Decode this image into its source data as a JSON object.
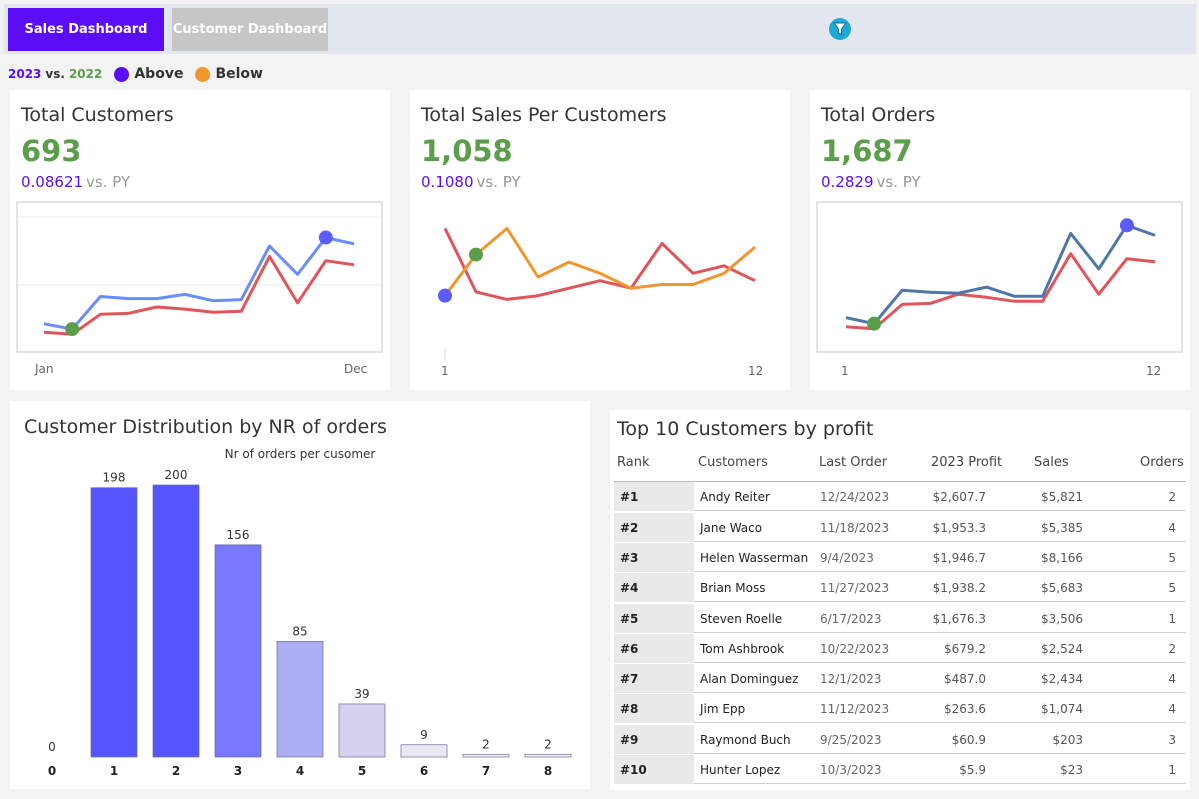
{
  "nav": {
    "sales_tab": "Sales Dashboard",
    "customer_tab": "Customer Dashboard",
    "filter_icon": "filter-icon"
  },
  "legend": {
    "year_current": "2023",
    "vs": "vs.",
    "year_previous": "2022",
    "above": "Above",
    "below": "Below",
    "above_color": "#5b5bff",
    "below_color": "#f0962d"
  },
  "kpis": [
    {
      "title": "Total Customers",
      "value": "693",
      "pct": "0.08621",
      "vs": "vs. PY",
      "x_start": "Jan",
      "x_end": "Dec",
      "current": [
        8,
        3,
        34,
        32,
        32,
        36,
        30,
        31,
        82,
        55,
        90,
        84
      ],
      "previous": [
        0,
        -2,
        17,
        18,
        24,
        22,
        19,
        20,
        72,
        28,
        68,
        64
      ],
      "ylim": [
        -15,
        120
      ],
      "min_index": 1,
      "max_index": 10,
      "current_color": "#6b8cff",
      "previous_color": "#e0545a",
      "framed": true,
      "reflines": true
    },
    {
      "title": "Total Sales Per Customers",
      "value": "1,058",
      "pct": "0.1080",
      "vs": "vs. PY",
      "x_start": "1",
      "x_end": "12",
      "current": [
        38,
        49,
        56,
        43,
        47,
        44,
        40,
        41,
        41,
        44,
        51
      ],
      "previous": [
        56,
        39,
        37,
        38,
        40,
        42,
        40,
        52,
        44,
        46,
        42
      ],
      "ylim": [
        24,
        62
      ],
      "min_index": 1,
      "max_index": 0,
      "current_color": "#f0962d",
      "previous_color": "#e0545a",
      "framed": false,
      "reflines": false
    },
    {
      "title": "Total Orders",
      "value": "1,687",
      "pct": "0.2829",
      "vs": "vs. PY",
      "x_start": "1",
      "x_end": "12",
      "current": [
        10,
        4,
        37,
        35,
        34,
        40,
        31,
        31,
        93,
        58,
        101,
        91
      ],
      "previous": [
        1,
        -1,
        23,
        24,
        33,
        30,
        26,
        26,
        73,
        33,
        68,
        65
      ],
      "ylim": [
        -20,
        120
      ],
      "min_index": 1,
      "max_index": 10,
      "current_color": "#4e76a8",
      "previous_color": "#e0545a",
      "framed": true,
      "reflines": false
    }
  ],
  "distribution": {
    "title": "Customer Distribution by NR of orders",
    "chart_data": {
      "type": "bar",
      "title": "Nr of orders per cusomer",
      "categories": [
        "0",
        "1",
        "2",
        "3",
        "4",
        "5",
        "6",
        "7",
        "8"
      ],
      "values": [
        0,
        198,
        200,
        156,
        85,
        39,
        9,
        2,
        2
      ],
      "colors": [
        "#5555ff",
        "#5555ff",
        "#5555ff",
        "#7777ff",
        "#aeaef4",
        "#d3d3f0",
        "#e8e8f4",
        "#f0f0f6",
        "#f0f0f6"
      ],
      "ylim": [
        0,
        200
      ]
    }
  },
  "top10": {
    "title": "Top 10 Customers by profit",
    "headers": {
      "rank": "Rank",
      "customers": "Customers",
      "last_order": "Last Order",
      "profit": "2023 Profit",
      "sales": "Sales",
      "orders": "Orders"
    },
    "rows": [
      {
        "rank": "#1",
        "name": "Andy Reiter",
        "date": "12/24/2023",
        "profit": "$2,607.7",
        "sales": "$5,821",
        "orders": "2"
      },
      {
        "rank": "#2",
        "name": "Jane Waco",
        "date": "11/18/2023",
        "profit": "$1,953.3",
        "sales": "$5,385",
        "orders": "4"
      },
      {
        "rank": "#3",
        "name": "Helen Wasserman",
        "date": "9/4/2023",
        "profit": "$1,946.7",
        "sales": "$8,166",
        "orders": "5"
      },
      {
        "rank": "#4",
        "name": "Brian Moss",
        "date": "11/27/2023",
        "profit": "$1,938.2",
        "sales": "$5,683",
        "orders": "5"
      },
      {
        "rank": "#5",
        "name": "Steven Roelle",
        "date": "6/17/2023",
        "profit": "$1,676.3",
        "sales": "$3,506",
        "orders": "1"
      },
      {
        "rank": "#6",
        "name": "Tom Ashbrook",
        "date": "10/22/2023",
        "profit": "$679.2",
        "sales": "$2,524",
        "orders": "2"
      },
      {
        "rank": "#7",
        "name": "Alan Dominguez",
        "date": "12/1/2023",
        "profit": "$487.0",
        "sales": "$2,434",
        "orders": "4"
      },
      {
        "rank": "#8",
        "name": "Jim Epp",
        "date": "11/12/2023",
        "profit": "$263.6",
        "sales": "$1,074",
        "orders": "4"
      },
      {
        "rank": "#9",
        "name": "Raymond Buch",
        "date": "9/25/2023",
        "profit": "$60.9",
        "sales": "$203",
        "orders": "3"
      },
      {
        "rank": "#10",
        "name": "Hunter Lopez",
        "date": "10/3/2023",
        "profit": "$5.9",
        "sales": "$23",
        "orders": "1"
      }
    ]
  }
}
